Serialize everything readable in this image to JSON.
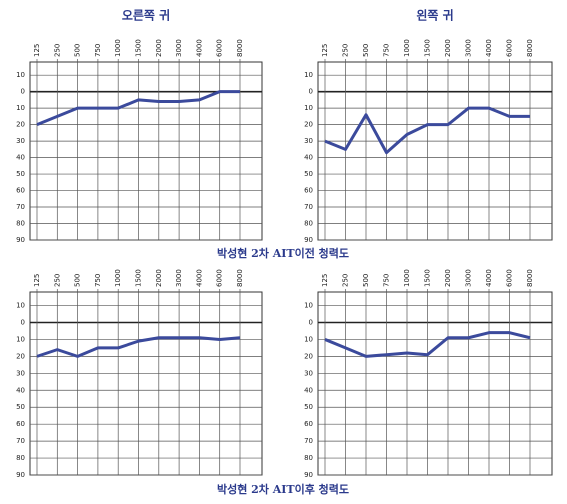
{
  "chart_data": [
    {
      "type": "line",
      "title": "오른쪽 귀",
      "y_inverted": true,
      "color": "#3b4a9c",
      "grid": true,
      "categories": [
        "125",
        "250",
        "500",
        "750",
        "1000",
        "1500",
        "2000",
        "3000",
        "4000",
        "6000",
        "8000"
      ],
      "values": [
        20,
        15,
        10,
        10,
        10,
        5,
        6,
        6,
        5,
        0,
        0
      ],
      "ylim": [
        -18,
        90
      ],
      "yticks": [
        {
          "value": -10,
          "label": "10"
        },
        0,
        10,
        20,
        30,
        40,
        50,
        60,
        70,
        80,
        90
      ]
    },
    {
      "type": "line",
      "title": "왼쪽 귀",
      "y_inverted": true,
      "color": "#3b4a9c",
      "grid": true,
      "categories": [
        "125",
        "250",
        "500",
        "750",
        "1000",
        "1500",
        "2000",
        "3000",
        "4000",
        "6000",
        "8000"
      ],
      "values": [
        30,
        35,
        14,
        37,
        26,
        20,
        20,
        10,
        10,
        15,
        15
      ],
      "ylim": [
        -18,
        90
      ],
      "yticks": [
        {
          "value": -10,
          "label": "10"
        },
        0,
        10,
        20,
        30,
        40,
        50,
        60,
        70,
        80,
        90
      ]
    },
    {
      "type": "line",
      "y_inverted": true,
      "color": "#3b4a9c",
      "grid": true,
      "categories": [
        "125",
        "250",
        "500",
        "750",
        "1000",
        "1500",
        "2000",
        "3000",
        "4000",
        "6000",
        "8000"
      ],
      "values": [
        20,
        16,
        20,
        15,
        15,
        11,
        9,
        9,
        9,
        10,
        9
      ],
      "ylim": [
        -18,
        90
      ],
      "yticks": [
        {
          "value": -10,
          "label": "10"
        },
        0,
        10,
        20,
        30,
        40,
        50,
        60,
        70,
        80,
        90
      ]
    },
    {
      "type": "line",
      "y_inverted": true,
      "color": "#3b4a9c",
      "grid": true,
      "categories": [
        "125",
        "250",
        "500",
        "750",
        "1000",
        "1500",
        "2000",
        "3000",
        "4000",
        "6000",
        "8000"
      ],
      "values": [
        10,
        15,
        20,
        19,
        18,
        19,
        9,
        9,
        6,
        6,
        9
      ],
      "ylim": [
        -18,
        90
      ],
      "yticks": [
        {
          "value": -10,
          "label": "10"
        },
        0,
        10,
        20,
        30,
        40,
        50,
        60,
        70,
        80,
        90
      ]
    }
  ],
  "captions": [
    "박성현 2차 AIT이전 청력도",
    "박성현 2차 AIT이후 청력도"
  ]
}
